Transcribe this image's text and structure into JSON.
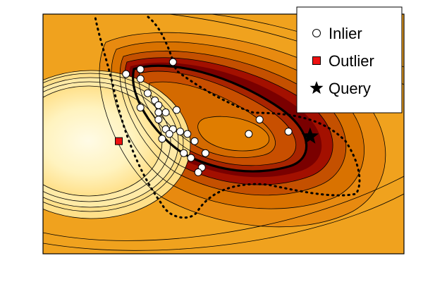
{
  "chart_data": {
    "type": "scatter",
    "title": "",
    "xlabel": "",
    "ylabel": "",
    "xlim": [
      0,
      1
    ],
    "ylim": [
      0,
      1
    ],
    "grid": false,
    "legend_position": "top-right",
    "colors": {
      "inlier_fill": "#ffffff",
      "outlier_fill": "#ee1111",
      "query_fill": "#000000",
      "level_dark": "#7a0000",
      "level_deep": "#a31000",
      "level_mid": "#d46a00",
      "level_warm": "#ee9a12",
      "level_light": "#fff3bf"
    },
    "series": [
      {
        "name": "Inlier",
        "marker": "circle",
        "points": [
          [
            0.23,
            0.75
          ],
          [
            0.27,
            0.77
          ],
          [
            0.27,
            0.73
          ],
          [
            0.36,
            0.8
          ],
          [
            0.29,
            0.67
          ],
          [
            0.31,
            0.64
          ],
          [
            0.32,
            0.62
          ],
          [
            0.27,
            0.61
          ],
          [
            0.32,
            0.59
          ],
          [
            0.34,
            0.59
          ],
          [
            0.37,
            0.6
          ],
          [
            0.32,
            0.56
          ],
          [
            0.34,
            0.52
          ],
          [
            0.36,
            0.52
          ],
          [
            0.35,
            0.5
          ],
          [
            0.38,
            0.51
          ],
          [
            0.4,
            0.5
          ],
          [
            0.33,
            0.48
          ],
          [
            0.42,
            0.47
          ],
          [
            0.39,
            0.42
          ],
          [
            0.41,
            0.4
          ],
          [
            0.45,
            0.42
          ],
          [
            0.44,
            0.36
          ],
          [
            0.43,
            0.34
          ],
          [
            0.57,
            0.5
          ],
          [
            0.6,
            0.56
          ],
          [
            0.68,
            0.51
          ]
        ]
      },
      {
        "name": "Outlier",
        "marker": "square",
        "points": [
          [
            0.21,
            0.47
          ]
        ]
      },
      {
        "name": "Query",
        "marker": "star",
        "points": [
          [
            0.74,
            0.49
          ]
        ]
      }
    ]
  }
}
